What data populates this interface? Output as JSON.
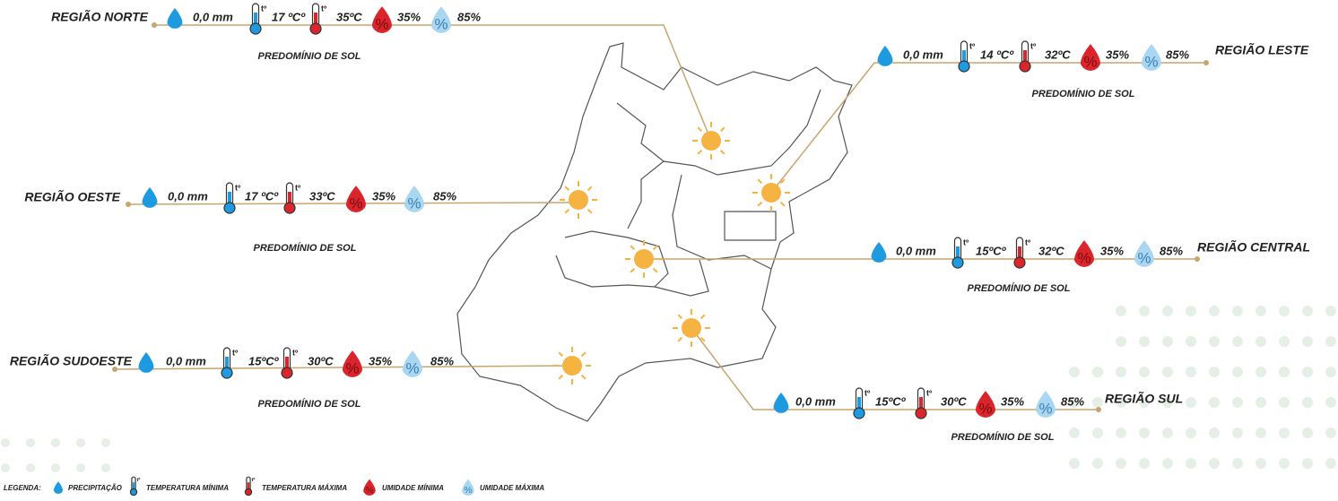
{
  "regions": [
    {
      "name": "REGIÃO NORTE",
      "precipitation": "0,0 mm",
      "temp_min": "17 ºCº",
      "temp_max": "35ºC",
      "humidity_min": "35%",
      "humidity_max": "85%",
      "condition": "PREDOMÍNIO DE SOL"
    },
    {
      "name": "REGIÃO LESTE",
      "precipitation": "0,0 mm",
      "temp_min": "14 ºCº",
      "temp_max": "32ºC",
      "humidity_min": "35%",
      "humidity_max": "85%",
      "condition": "PREDOMÍNIO DE SOL"
    },
    {
      "name": "REGIÃO OESTE",
      "precipitation": "0,0 mm",
      "temp_min": "17 ºCº",
      "temp_max": "33ºC",
      "humidity_min": "35%",
      "humidity_max": "85%",
      "condition": "PREDOMÍNIO DE SOL"
    },
    {
      "name": "REGIÃO CENTRAL",
      "precipitation": "0,0 mm",
      "temp_min": "15ºCº",
      "temp_max": "32ºC",
      "humidity_min": "35%",
      "humidity_max": "85%",
      "condition": "PREDOMÍNIO DE SOL"
    },
    {
      "name": "REGIÃO SUDOESTE",
      "precipitation": "0,0 mm",
      "temp_min": "15ºCº",
      "temp_max": "30ºC",
      "humidity_min": "35%",
      "humidity_max": "85%",
      "condition": "PREDOMÍNIO DE SOL"
    },
    {
      "name": "REGIÃO SUL",
      "precipitation": "0,0 mm",
      "temp_min": "15ºCº",
      "temp_max": "30ºC",
      "humidity_min": "35%",
      "humidity_max": "85%",
      "condition": "PREDOMÍNIO DE SOL"
    }
  ],
  "icon_text": {
    "thermometer": "tº",
    "percent": "%"
  },
  "legend": {
    "title": "LEGENDA:",
    "precipitation": "PRECIPITAÇÃO",
    "temp_min": "TEMPERATURA MÍNIMA",
    "temp_max": "TEMPERATURA MÁXIMA",
    "humidity_min": "UMIDADE MÍNIMA",
    "humidity_max": "UMIDADE MÁXIMA"
  }
}
